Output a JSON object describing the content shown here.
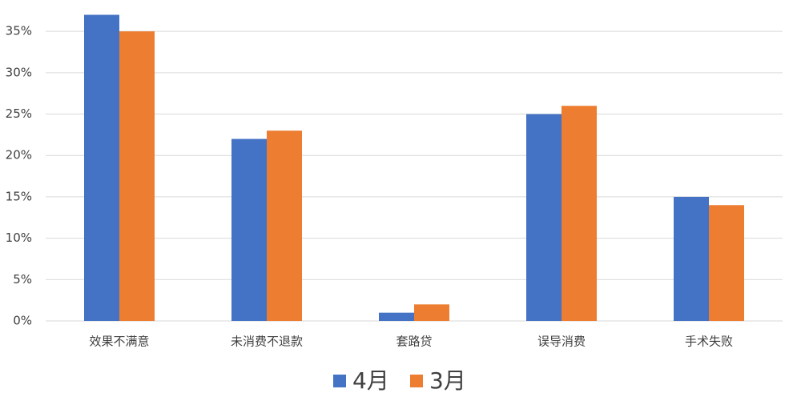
{
  "chart_data": {
    "type": "bar",
    "categories": [
      "效果不满意",
      "未消费不退款",
      "套路贷",
      "误导消费",
      "手术失败"
    ],
    "series": [
      {
        "name": "4月",
        "color": "#4472c4",
        "values": [
          37,
          22,
          1,
          25,
          15
        ]
      },
      {
        "name": "3月",
        "color": "#ed7d31",
        "values": [
          35,
          23,
          2,
          26,
          14
        ]
      }
    ],
    "ylim": [
      0,
      37
    ],
    "yticks": [
      {
        "value": 0,
        "label": "0%"
      },
      {
        "value": 5,
        "label": "5%"
      },
      {
        "value": 10,
        "label": "10%"
      },
      {
        "value": 15,
        "label": "15%"
      },
      {
        "value": 20,
        "label": "20%"
      },
      {
        "value": 25,
        "label": "25%"
      },
      {
        "value": 30,
        "label": "30%"
      },
      {
        "value": 35,
        "label": "35%"
      }
    ],
    "grid": true,
    "legend": "bottom"
  }
}
